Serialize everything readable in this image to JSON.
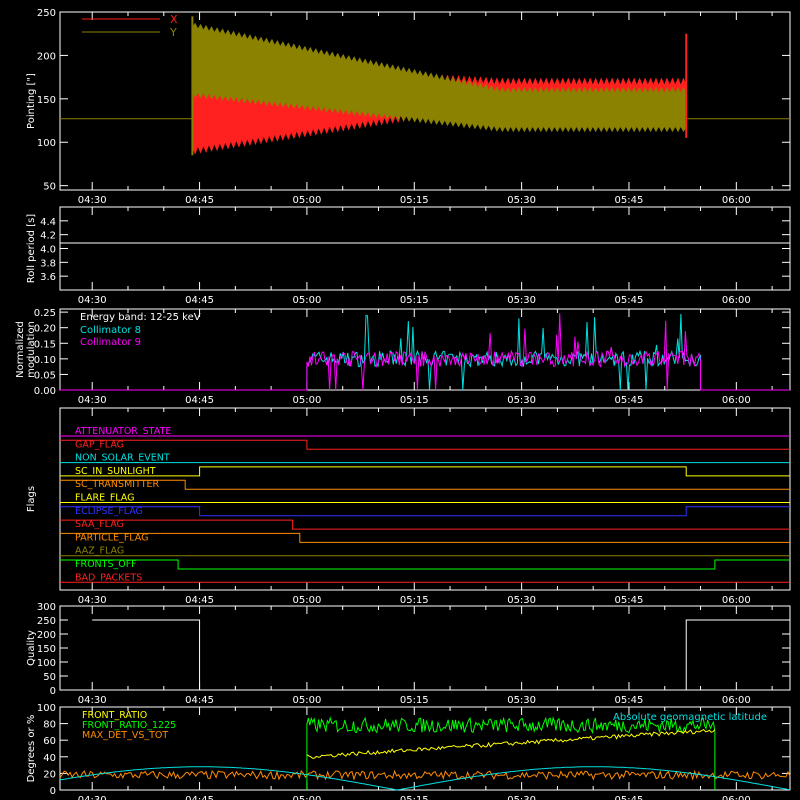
{
  "colors": {
    "background": "#000000",
    "axis": "#ffffff",
    "x_pointing": "#ff2020",
    "y_pointing": "#8a8200",
    "collimator_8": "#00e0e0",
    "collimator_9": "#ff00ff",
    "front_ratio": "#ffff00",
    "front_ratio_1225": "#00ff00",
    "max_det_vs_tot": "#ff8c00",
    "geomag_lat": "#00e0e0"
  },
  "time_ticks": [
    "04:30",
    "04:45",
    "05:00",
    "05:15",
    "05:30",
    "05:45",
    "06:00"
  ],
  "chart_data": [
    {
      "type": "line",
      "ylabel": "Pointing [\"]",
      "ylim": [
        45,
        250
      ],
      "yticks": [
        "50",
        "100",
        "150",
        "200",
        "250"
      ],
      "legend": "top-left",
      "series": [
        {
          "name": "X",
          "baseline": 127,
          "oscillation_start": "04:44",
          "oscillation_end": "05:53",
          "value_at_start": [
            90,
            190
          ],
          "value_at_end": [
            145,
            170
          ]
        },
        {
          "name": "Y",
          "baseline": 127,
          "oscillation_start": "04:44",
          "oscillation_end": "05:53",
          "value_at_start": [
            155,
            235
          ],
          "value_at_end": [
            115,
            160
          ]
        }
      ]
    },
    {
      "type": "line",
      "ylabel": "Roll period [s]",
      "ylim": [
        3.4,
        4.6
      ],
      "yticks": [
        "3.6",
        "3.8",
        "4.0",
        "4.2",
        "4.4"
      ],
      "series": [
        {
          "value": 4.08
        }
      ]
    },
    {
      "type": "line",
      "ylabel": "Normalized\nmodulation",
      "ylim": [
        0,
        0.26
      ],
      "yticks": [
        "0.00",
        "0.05",
        "0.10",
        "0.15",
        "0.20",
        "0.25"
      ],
      "annotation": "Energy band: 12-25 keV",
      "legend": "top-left",
      "active_start": "05:00",
      "active_end": "05:55",
      "series": [
        {
          "name": "Collimator 8",
          "mean": 0.1
        },
        {
          "name": "Collimator 9",
          "mean": 0.1
        }
      ]
    },
    {
      "type": "line",
      "ylabel": "Flags",
      "flags": [
        {
          "name": "ATTENUATOR_STATE",
          "color": "#ff00ff",
          "transitions": []
        },
        {
          "name": "GAP_FLAG",
          "color": "#ff2020",
          "transitions": [
            [
              "04:30",
              1
            ],
            [
              "05:00",
              0
            ]
          ]
        },
        {
          "name": "NON_SOLAR_EVENT",
          "color": "#00e0e0",
          "transitions": []
        },
        {
          "name": "SC_IN_SUNLIGHT",
          "color": "#ffff00",
          "transitions": [
            [
              "04:30",
              0
            ],
            [
              "04:45",
              1
            ],
            [
              "05:53",
              0
            ]
          ]
        },
        {
          "name": "SC_TRANSMITTER",
          "color": "#ff8c00",
          "transitions": [
            [
              "04:30",
              1
            ],
            [
              "04:43",
              0
            ]
          ]
        },
        {
          "name": "FLARE_FLAG",
          "color": "#ffff00",
          "transitions": []
        },
        {
          "name": "ECLIPSE_FLAG",
          "color": "#3030ff",
          "transitions": [
            [
              "04:30",
              1
            ],
            [
              "04:45",
              0
            ],
            [
              "05:53",
              1
            ]
          ]
        },
        {
          "name": "SAA_FLAG",
          "color": "#ff2020",
          "transitions": [
            [
              "04:30",
              1
            ],
            [
              "04:58",
              0
            ]
          ]
        },
        {
          "name": "PARTICLE_FLAG",
          "color": "#ff8c00",
          "transitions": [
            [
              "04:30",
              1
            ],
            [
              "04:59",
              0
            ]
          ]
        },
        {
          "name": "AAZ_FLAG",
          "color": "#8a8200",
          "transitions": [
            [
              "04:30",
              0
            ]
          ]
        },
        {
          "name": "FRONTS_OFF",
          "color": "#00ff00",
          "transitions": [
            [
              "04:30",
              1
            ],
            [
              "04:42",
              0
            ],
            [
              "05:57",
              1
            ]
          ]
        },
        {
          "name": "BAD_PACKETS",
          "color": "#ff2020",
          "transitions": []
        }
      ]
    },
    {
      "type": "line",
      "ylabel": "Quality",
      "ylim": [
        0,
        300
      ],
      "yticks": [
        "0",
        "50",
        "100",
        "150",
        "200",
        "250",
        "300"
      ],
      "series": [
        {
          "segments": [
            [
              "04:30",
              250
            ],
            [
              "04:45",
              0
            ],
            [
              "05:53",
              250
            ],
            [
              "06:06",
              250
            ]
          ]
        }
      ]
    },
    {
      "type": "line",
      "ylabel": "Degrees or %",
      "ylim": [
        0,
        100
      ],
      "yticks": [
        "0",
        "20",
        "40",
        "60",
        "80",
        "100"
      ],
      "legend": "top-left",
      "annotation": "Absolute geomagnetic latitude",
      "series": [
        {
          "name": "FRONT_RATIO",
          "range_start": "05:00",
          "range_end": "05:57",
          "start": 40,
          "end": 72
        },
        {
          "name": "FRONT_RATIO_1225",
          "range_start": "05:00",
          "range_end": "05:57",
          "mean": 78
        },
        {
          "name": "MAX_DET_VS_TOT",
          "mean": 18
        },
        {
          "name": "Absolute geomagnetic latitude",
          "min": 0,
          "max": 28
        }
      ]
    }
  ]
}
